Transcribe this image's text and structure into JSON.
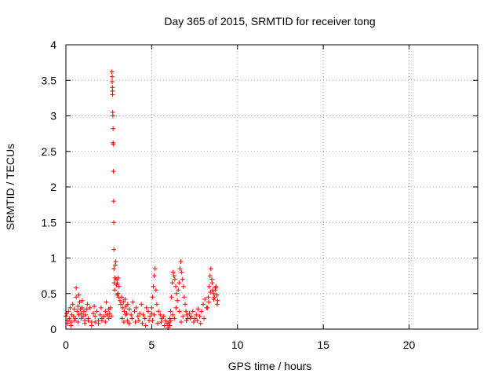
{
  "chart_data": {
    "type": "scatter",
    "title": "Day 365 of 2015, SRMTID for receiver tong",
    "xlabel": "GPS time / hours",
    "ylabel": "SRMTID / TECUs",
    "xlim": [
      0,
      24
    ],
    "ylim": [
      0,
      4
    ],
    "xticks": [
      "0",
      "5",
      "10",
      "15",
      "20"
    ],
    "yticks": [
      "0",
      "0.5",
      "1",
      "1.5",
      "2",
      "2.5",
      "3",
      "3.5",
      "4"
    ],
    "grid": true,
    "marker": "+",
    "color": "#ff0000",
    "series": [
      {
        "x": [
          0.0,
          0.05,
          0.1,
          0.15,
          0.2,
          0.25,
          0.3,
          0.35,
          0.4,
          0.45,
          0.5,
          0.55,
          0.6,
          0.65,
          0.7,
          0.75,
          0.8,
          0.85,
          0.9,
          0.95,
          1.0,
          1.05,
          1.1,
          1.15,
          1.2,
          1.3,
          1.4,
          1.5,
          1.6,
          1.7,
          1.8,
          1.9,
          2.0,
          2.1,
          2.2,
          2.3,
          2.4,
          2.5,
          2.55,
          2.6,
          2.65,
          0.1,
          0.3,
          0.5,
          0.7,
          0.9,
          1.1,
          1.3,
          1.5,
          1.7,
          1.9,
          2.1,
          2.3,
          2.5,
          0.6,
          0.75,
          0.95,
          1.25,
          1.65,
          2.05,
          2.35,
          2.68,
          2.7,
          2.7,
          2.71,
          2.72,
          2.72,
          2.73,
          2.74,
          2.75,
          2.75,
          2.76,
          2.77,
          2.78,
          2.79,
          2.8,
          2.8,
          2.82,
          2.84,
          2.86,
          2.88,
          2.9,
          2.93,
          2.95,
          2.98,
          3.0,
          3.03,
          3.05,
          3.08,
          3.1,
          3.15,
          3.2,
          3.25,
          3.3,
          3.35,
          3.4,
          3.45,
          3.5,
          3.55,
          3.6,
          3.7,
          3.8,
          3.9,
          4.0,
          4.1,
          4.2,
          4.3,
          4.4,
          4.5,
          4.6,
          4.7,
          4.8,
          4.9,
          5.0,
          3.28,
          3.38,
          3.48,
          3.58,
          3.68,
          3.85,
          4.05,
          4.25,
          4.45,
          4.65,
          4.85,
          5.0,
          5.05,
          5.1,
          5.15,
          5.2,
          5.25,
          5.3,
          5.4,
          5.5,
          5.6,
          5.7,
          5.8,
          5.9,
          6.0,
          6.05,
          5.05,
          5.15,
          5.35,
          5.55,
          5.75,
          5.95,
          6.0,
          6.05,
          6.1,
          6.15,
          6.2,
          6.25,
          6.3,
          6.35,
          6.4,
          6.45,
          6.5,
          6.55,
          6.6,
          6.65,
          6.7,
          6.75,
          6.8,
          6.85,
          6.9,
          6.95,
          7.0,
          7.05,
          7.1,
          7.2,
          7.3,
          7.4,
          7.5,
          7.6,
          7.7,
          7.8,
          7.9,
          8.0,
          8.1,
          8.2,
          6.12,
          6.22,
          6.32,
          6.42,
          6.62,
          6.72,
          6.82,
          7.02,
          7.25,
          7.45,
          7.65,
          7.85,
          8.05,
          8.25,
          8.3,
          8.35,
          8.4,
          8.45,
          8.5,
          8.55,
          8.6,
          8.65,
          8.7,
          8.75,
          8.8,
          8.85,
          8.32,
          8.42,
          8.52,
          8.62,
          8.72,
          8.82
        ],
        "y": [
          0.18,
          0.22,
          0.12,
          0.25,
          0.15,
          0.3,
          0.1,
          0.2,
          0.35,
          0.18,
          0.28,
          0.15,
          0.45,
          0.25,
          0.32,
          0.2,
          0.38,
          0.28,
          0.22,
          0.3,
          0.18,
          0.25,
          0.12,
          0.2,
          0.28,
          0.15,
          0.3,
          0.1,
          0.22,
          0.18,
          0.25,
          0.12,
          0.2,
          0.15,
          0.18,
          0.25,
          0.2,
          0.28,
          0.22,
          0.3,
          0.18,
          0.08,
          0.05,
          0.12,
          0.1,
          0.15,
          0.08,
          0.12,
          0.05,
          0.1,
          0.08,
          0.12,
          0.1,
          0.15,
          0.58,
          0.48,
          0.4,
          0.35,
          0.32,
          0.3,
          0.38,
          3.62,
          3.55,
          3.48,
          3.4,
          3.35,
          3.3,
          3.05,
          3.0,
          2.82,
          2.62,
          2.6,
          2.22,
          1.8,
          1.5,
          1.12,
          0.85,
          0.65,
          0.55,
          0.72,
          0.9,
          0.95,
          0.7,
          0.62,
          0.48,
          0.65,
          0.5,
          0.72,
          0.45,
          0.6,
          0.4,
          0.35,
          0.45,
          0.3,
          0.38,
          0.25,
          0.42,
          0.32,
          0.22,
          0.35,
          0.28,
          0.2,
          0.38,
          0.25,
          0.3,
          0.18,
          0.22,
          0.35,
          0.2,
          0.15,
          0.3,
          0.25,
          0.18,
          0.22,
          0.15,
          0.1,
          0.2,
          0.12,
          0.08,
          0.15,
          0.1,
          0.12,
          0.08,
          0.05,
          0.12,
          0.3,
          0.45,
          0.6,
          0.75,
          0.85,
          0.55,
          0.35,
          0.25,
          0.2,
          0.15,
          0.18,
          0.12,
          0.08,
          0.1,
          0.05,
          0.12,
          0.2,
          0.08,
          0.1,
          0.05,
          0.02,
          0.08,
          0.15,
          0.25,
          0.45,
          0.65,
          0.8,
          0.75,
          0.7,
          0.6,
          0.5,
          0.4,
          0.55,
          0.65,
          0.85,
          0.95,
          0.8,
          0.7,
          0.6,
          0.45,
          0.35,
          0.25,
          0.2,
          0.15,
          0.22,
          0.18,
          0.25,
          0.15,
          0.2,
          0.28,
          0.18,
          0.25,
          0.35,
          0.42,
          0.3,
          0.12,
          0.2,
          0.15,
          0.3,
          0.25,
          0.1,
          0.18,
          0.12,
          0.15,
          0.1,
          0.12,
          0.08,
          0.15,
          0.3,
          0.45,
          0.6,
          0.75,
          0.85,
          0.7,
          0.55,
          0.5,
          0.45,
          0.55,
          0.6,
          0.48,
          0.4,
          0.38,
          0.52,
          0.65,
          0.42,
          0.58,
          0.35
        ]
      }
    ]
  }
}
